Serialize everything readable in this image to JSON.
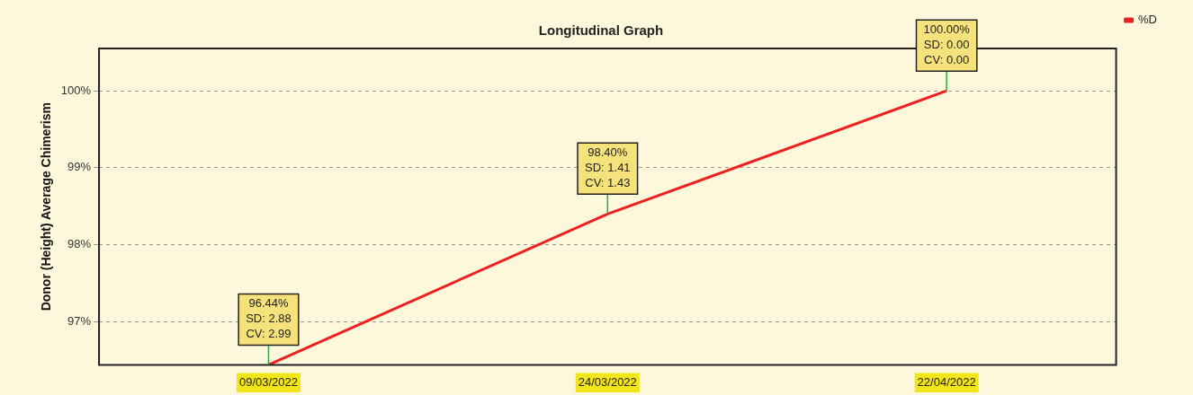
{
  "chart_data": {
    "type": "line",
    "title": "Longitudinal Graph",
    "ylabel": "Donor (Height) Average Chimerism",
    "categories": [
      "09/03/2022",
      "24/03/2022",
      "22/04/2022"
    ],
    "series": [
      {
        "name": "%D",
        "color": "#ee2020",
        "values": [
          96.44,
          98.4,
          100.0
        ]
      }
    ],
    "ylim": [
      96.44,
      100.55
    ],
    "yticks": [
      {
        "value": 97,
        "label": "97%"
      },
      {
        "value": 98,
        "label": "98%"
      },
      {
        "value": 99,
        "label": "99%"
      },
      {
        "value": 100,
        "label": "100%"
      }
    ],
    "annotations": [
      {
        "text": "96.44%\nSD: 2.88\nCV: 2.99",
        "x": "09/03/2022",
        "y": 96.44
      },
      {
        "text": "98.40%\nSD: 1.41\nCV: 1.43",
        "x": "24/03/2022",
        "y": 98.4
      },
      {
        "text": "100.00%\nSD: 0.00\nCV: 0.00",
        "x": "22/04/2022",
        "y": 100.0
      }
    ],
    "grid": "y",
    "legend": "top right",
    "marker": "none",
    "line_style": "solid"
  }
}
